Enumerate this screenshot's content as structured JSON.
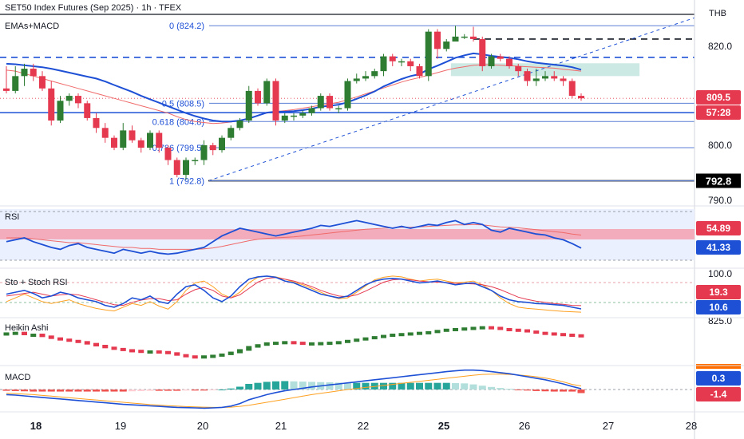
{
  "header": {
    "title": "SET50 Index Futures (Sep 2025) · 1h · TFEX",
    "currency": "THB"
  },
  "indicators": {
    "ema": "EMAs+MACD",
    "rsi": "RSI",
    "stoch": "Sto + Stoch RSI",
    "heikin": "Heikin Ashi",
    "macd": "MACD"
  },
  "price_axis": {
    "ticks": [
      "820.0",
      "800.0",
      "790.0"
    ],
    "last_price": "809.5",
    "countdown": "57:28",
    "level_label": "792.8"
  },
  "fib_labels": [
    "0 (824.2)",
    "0.5 (808.5)",
    "0.618 (804.8)",
    "0.786 (799.5)",
    "1 (792.8)"
  ],
  "pane_badges": {
    "rsi_upper": "54.89",
    "rsi_lower": "41.33",
    "stoch_tick": "100.0",
    "stoch_upper": "19.3",
    "stoch_lower": "10.6",
    "heikin_tick": "825.0",
    "macd_upper": "0.3",
    "macd_lower": "-1.4"
  },
  "time_axis": [
    "18",
    "19",
    "20",
    "21",
    "22",
    "25",
    "26",
    "27",
    "28"
  ],
  "colors": {
    "up": "#2e7d32",
    "down": "#e53950",
    "blue": "#1e50d6",
    "ema_red": "#f06a6a",
    "teal_zone": "#cde9e4",
    "rsi_band": "#f3a0b0",
    "orange": "#ffa020"
  },
  "chart_data": {
    "type": "candlestick",
    "title": "SET50 Index Futures (Sep 2025) · 1h · TFEX",
    "ylim": [
      789,
      826.5
    ],
    "candles": [
      [
        811.5,
        811,
        816,
        810.5
      ],
      [
        811,
        814,
        816,
        810.5
      ],
      [
        814,
        815.5,
        816.5,
        812
      ],
      [
        815.5,
        814,
        816.5,
        813
      ],
      [
        814,
        811.5,
        815,
        811
      ],
      [
        811.5,
        805,
        813,
        804
      ],
      [
        805,
        809,
        810,
        804.5
      ],
      [
        809,
        810,
        810.5,
        808
      ],
      [
        810,
        808.5,
        810.5,
        807.5
      ],
      [
        808.5,
        805.5,
        809,
        805
      ],
      [
        805.5,
        803.5,
        806.5,
        802.5
      ],
      [
        803.5,
        801.5,
        804.5,
        800.5
      ],
      [
        801.5,
        799.5,
        802,
        799
      ],
      [
        799.5,
        803,
        804.5,
        799
      ],
      [
        803,
        801,
        804,
        800.5
      ],
      [
        801,
        799.5,
        801.5,
        798.5
      ],
      [
        799.5,
        802.5,
        803,
        799
      ],
      [
        802.5,
        799.5,
        803,
        798.5
      ],
      [
        799.5,
        797,
        800,
        796
      ],
      [
        797,
        794,
        797.5,
        793.5
      ],
      [
        794,
        797,
        797.5,
        793
      ],
      [
        797,
        797,
        797.5,
        796
      ],
      [
        797,
        800,
        801,
        796
      ],
      [
        800,
        799,
        800.5,
        798
      ],
      [
        799,
        801.5,
        802,
        798.5
      ],
      [
        801.5,
        803.5,
        804,
        801
      ],
      [
        803.5,
        805,
        805.5,
        803
      ],
      [
        805,
        811,
        812,
        804.5
      ],
      [
        811,
        808.5,
        811.5,
        808
      ],
      [
        808.5,
        813,
        813.5,
        808
      ],
      [
        813,
        805,
        813.5,
        804
      ],
      [
        805,
        806,
        806.5,
        804.5
      ],
      [
        806,
        806,
        806.5,
        805
      ],
      [
        806,
        806.5,
        807,
        805.5
      ],
      [
        806.5,
        807.5,
        808,
        806
      ],
      [
        807.5,
        810,
        810.5,
        807
      ],
      [
        810,
        807.5,
        810.5,
        807
      ],
      [
        807.5,
        807.5,
        808,
        806.5
      ],
      [
        807.5,
        813,
        813.5,
        807
      ],
      [
        813,
        813.5,
        814.5,
        812.5
      ],
      [
        813.5,
        814,
        815,
        813
      ],
      [
        814,
        815,
        815.5,
        813.5
      ],
      [
        815,
        818,
        818.5,
        814
      ],
      [
        818,
        817,
        818.5,
        816
      ],
      [
        817,
        817,
        817.5,
        816
      ],
      [
        817,
        816,
        817.5,
        815
      ],
      [
        816,
        814,
        816.5,
        813.5
      ],
      [
        814,
        823,
        823.5,
        813
      ],
      [
        823,
        819.5,
        823.5,
        817.5
      ],
      [
        819.5,
        821,
        821.5,
        819
      ],
      [
        821,
        822,
        824.2,
        821
      ],
      [
        822,
        822,
        822.5,
        821.5
      ],
      [
        822,
        821.5,
        824,
        821
      ],
      [
        821.5,
        816,
        822,
        815
      ],
      [
        816,
        818,
        818.5,
        815.5
      ],
      [
        818,
        817.5,
        818.5,
        817
      ],
      [
        817.5,
        816,
        818,
        815.5
      ],
      [
        816,
        815,
        816.5,
        814
      ],
      [
        815,
        813,
        815.5,
        812
      ],
      [
        813,
        813.5,
        815.5,
        812
      ],
      [
        813.5,
        814,
        815,
        813
      ],
      [
        814,
        813.5,
        815,
        813
      ],
      [
        813.5,
        813,
        814,
        812
      ],
      [
        813,
        810,
        813.5,
        809.5
      ],
      [
        810,
        809.5,
        810.5,
        809
      ]
    ],
    "ema_fast": [
      815.2,
      815,
      814.5,
      814,
      813.5,
      813,
      812.5,
      812,
      811.5,
      811,
      810.5,
      810,
      809.5,
      809,
      808.5,
      808,
      807.5,
      807,
      806.5,
      805.8,
      805.2,
      804.8,
      804.6,
      804.4,
      804.5,
      804.7,
      805,
      805.5,
      806,
      806.5,
      806.8,
      807,
      807.2,
      807.5,
      807.8,
      808.1,
      808.4,
      808.7,
      809.2,
      809.8,
      810.4,
      811,
      811.6,
      812.2,
      812.8,
      813.3,
      813.7,
      814.2,
      814.7,
      815.2,
      815.6,
      815.9,
      816.2,
      816.3,
      816.3,
      816.2,
      816.1,
      816,
      815.9,
      815.8,
      815.7,
      815.6,
      815.4,
      815.2,
      815
    ],
    "ema_slow": [
      816.5,
      816.4,
      816.2,
      816,
      815.8,
      815.5,
      815.1,
      814.7,
      814.3,
      813.9,
      813.5,
      812.9,
      812.2,
      811.5,
      810.8,
      810,
      809.3,
      808.6,
      807.9,
      807.2,
      806.5,
      805.9,
      805.4,
      805,
      804.8,
      804.8,
      805,
      805.4,
      806,
      806.6,
      806.8,
      806.8,
      806.9,
      807.1,
      807.4,
      807.8,
      808,
      808.2,
      808.7,
      809.4,
      810.1,
      810.9,
      811.9,
      812.7,
      813.4,
      814,
      814.4,
      815.4,
      816.1,
      816.9,
      817.7,
      818.2,
      818.6,
      818.4,
      818.1,
      817.9,
      817.7,
      817.4,
      817,
      816.7,
      816.5,
      816.3,
      816.1,
      815.8,
      815.3
    ],
    "fib_levels": [
      824.2,
      808.5,
      804.8,
      799.5,
      792.8
    ],
    "dashed_levels": [
      817.8,
      821.5
    ],
    "rsi": {
      "rsi": [
        48,
        50,
        52,
        48,
        45,
        42,
        40,
        44,
        46,
        42,
        40,
        38,
        36,
        40,
        38,
        36,
        38,
        36,
        35,
        36,
        38,
        40,
        42,
        48,
        54,
        58,
        62,
        60,
        58,
        56,
        54,
        56,
        58,
        60,
        62,
        65,
        64,
        66,
        68,
        70,
        68,
        66,
        64,
        62,
        64,
        62,
        64,
        66,
        65,
        68,
        70,
        66,
        68,
        66,
        60,
        58,
        62,
        60,
        58,
        56,
        55,
        52,
        50,
        46,
        41.33
      ],
      "signal": [
        52,
        52,
        52,
        51,
        50,
        49,
        48,
        47,
        47,
        46,
        45,
        44,
        43,
        42,
        42,
        41,
        41,
        40,
        40,
        40,
        40,
        40,
        40.5,
        41.5,
        43,
        45,
        47,
        49,
        50.5,
        51.5,
        52,
        52.5,
        53,
        54,
        55,
        56,
        57,
        58,
        59,
        60,
        61,
        61.5,
        62,
        62.5,
        63,
        63,
        63.5,
        64,
        64.5,
        65,
        65.5,
        65.5,
        66,
        65.5,
        64.5,
        63.5,
        63,
        62.5,
        61.5,
        60.5,
        59.5,
        58.5,
        57.5,
        56,
        54.89
      ]
    },
    "stoch": {
      "k": [
        50,
        55,
        60,
        52,
        40,
        45,
        55,
        50,
        40,
        35,
        30,
        20,
        15,
        25,
        40,
        35,
        45,
        30,
        25,
        50,
        70,
        75,
        60,
        40,
        30,
        45,
        70,
        90,
        96,
        98,
        95,
        85,
        80,
        70,
        60,
        50,
        45,
        40,
        45,
        60,
        75,
        85,
        90,
        92,
        90,
        85,
        80,
        82,
        85,
        80,
        75,
        78,
        80,
        70,
        60,
        45,
        35,
        30,
        28,
        25,
        24,
        22,
        20,
        15,
        10.6
      ],
      "d": [
        45,
        48,
        52,
        55,
        50,
        45,
        48,
        50,
        48,
        42,
        35,
        28,
        22,
        20,
        28,
        34,
        38,
        38,
        33,
        35,
        50,
        62,
        68,
        60,
        45,
        40,
        48,
        65,
        82,
        92,
        94,
        90,
        85,
        78,
        70,
        60,
        52,
        45,
        43,
        48,
        58,
        70,
        82,
        88,
        90,
        88,
        85,
        83,
        82,
        81,
        79,
        78,
        77,
        75,
        70,
        62,
        52,
        42,
        36,
        31,
        28,
        25,
        23,
        20,
        19.3
      ],
      "srsi": [
        30,
        40,
        50,
        40,
        30,
        25,
        30,
        35,
        25,
        18,
        12,
        8,
        5,
        15,
        25,
        20,
        30,
        18,
        10,
        30,
        60,
        80,
        85,
        70,
        50,
        40,
        55,
        80,
        95,
        98,
        96,
        90,
        82,
        75,
        65,
        55,
        45,
        38,
        40,
        55,
        72,
        88,
        95,
        98,
        96,
        90,
        85,
        88,
        90,
        85,
        80,
        82,
        85,
        75,
        60,
        40,
        25,
        15,
        12,
        10,
        8,
        6,
        4,
        3,
        2
      ]
    },
    "heikin_ashi": [
      816,
      816.5,
      815,
      815,
      813.5,
      812,
      811,
      810,
      809,
      807.5,
      806,
      804.5,
      803.5,
      802.5,
      802,
      801.5,
      801.5,
      801,
      800,
      798.5,
      797.5,
      797,
      797.5,
      798,
      799,
      800.5,
      802.5,
      805,
      806.5,
      808,
      808.5,
      809,
      808.5,
      808,
      808,
      808.2,
      808.5,
      809,
      810,
      811,
      812,
      813,
      814,
      815,
      815.5,
      816,
      816.5,
      817,
      818,
      819,
      819.5,
      820,
      820.5,
      821,
      820.5,
      819.5,
      819,
      818.5,
      817.5,
      816.5,
      816,
      815.5,
      815,
      814.5,
      814
    ],
    "macd": {
      "macd": [
        -2,
        -2.2,
        -2.5,
        -2.8,
        -3.1,
        -3.4,
        -3.7,
        -4,
        -4.3,
        -4.6,
        -4.9,
        -5.2,
        -5.5,
        -5.8,
        -6,
        -6.2,
        -6.4,
        -6.6,
        -6.8,
        -7,
        -7.1,
        -7.2,
        -7.3,
        -7.2,
        -7,
        -6.5,
        -5.5,
        -4,
        -3,
        -2,
        -1.2,
        -0.5,
        0,
        0.5,
        1,
        1.4,
        1.8,
        2.2,
        2.6,
        3,
        3.4,
        3.8,
        4.2,
        4.6,
        5,
        5.4,
        5.8,
        6.2,
        6.6,
        7,
        7.3,
        7.6,
        7.6,
        7.4,
        7,
        6.6,
        6.2,
        5.6,
        5,
        4.4,
        3.8,
        3,
        2.2,
        1.2,
        0.3
      ],
      "signal": [
        -1.5,
        -1.6,
        -1.8,
        -2,
        -2.3,
        -2.6,
        -2.9,
        -3.2,
        -3.5,
        -3.8,
        -4.1,
        -4.4,
        -4.7,
        -5,
        -5.3,
        -5.6,
        -5.9,
        -6.1,
        -6.3,
        -6.5,
        -6.7,
        -6.8,
        -6.9,
        -7,
        -7,
        -6.9,
        -6.6,
        -6.2,
        -5.6,
        -5,
        -4.4,
        -3.8,
        -3.2,
        -2.6,
        -2,
        -1.5,
        -1,
        -0.5,
        0,
        0.4,
        0.8,
        1.2,
        1.6,
        2,
        2.4,
        2.8,
        3.2,
        3.6,
        4,
        4.4,
        4.8,
        5.2,
        5.6,
        5.9,
        6,
        6,
        5.9,
        5.7,
        5.4,
        5,
        4.5,
        3.8,
        3,
        2,
        1.4
      ],
      "hist": [
        -0.5,
        -0.6,
        -0.7,
        -0.8,
        -0.8,
        -0.8,
        -0.8,
        -0.8,
        -0.8,
        -0.8,
        -0.8,
        -0.8,
        -0.8,
        -0.8,
        -0.7,
        -0.6,
        -0.5,
        -0.5,
        -0.5,
        -0.5,
        -0.4,
        -0.4,
        -0.4,
        -0.2,
        0,
        0.4,
        1.1,
        2.2,
        2.6,
        3,
        3.2,
        3.3,
        3.2,
        3.1,
        3,
        2.9,
        2.8,
        2.7,
        2.6,
        2.6,
        2.6,
        2.6,
        2.6,
        2.6,
        2.6,
        2.6,
        2.6,
        2.6,
        2.6,
        2.6,
        2.5,
        2.4,
        2,
        1.5,
        1,
        0.6,
        0.3,
        -0.1,
        -0.4,
        -0.6,
        -0.7,
        -0.8,
        -0.8,
        -0.8,
        -1.4
      ]
    }
  }
}
